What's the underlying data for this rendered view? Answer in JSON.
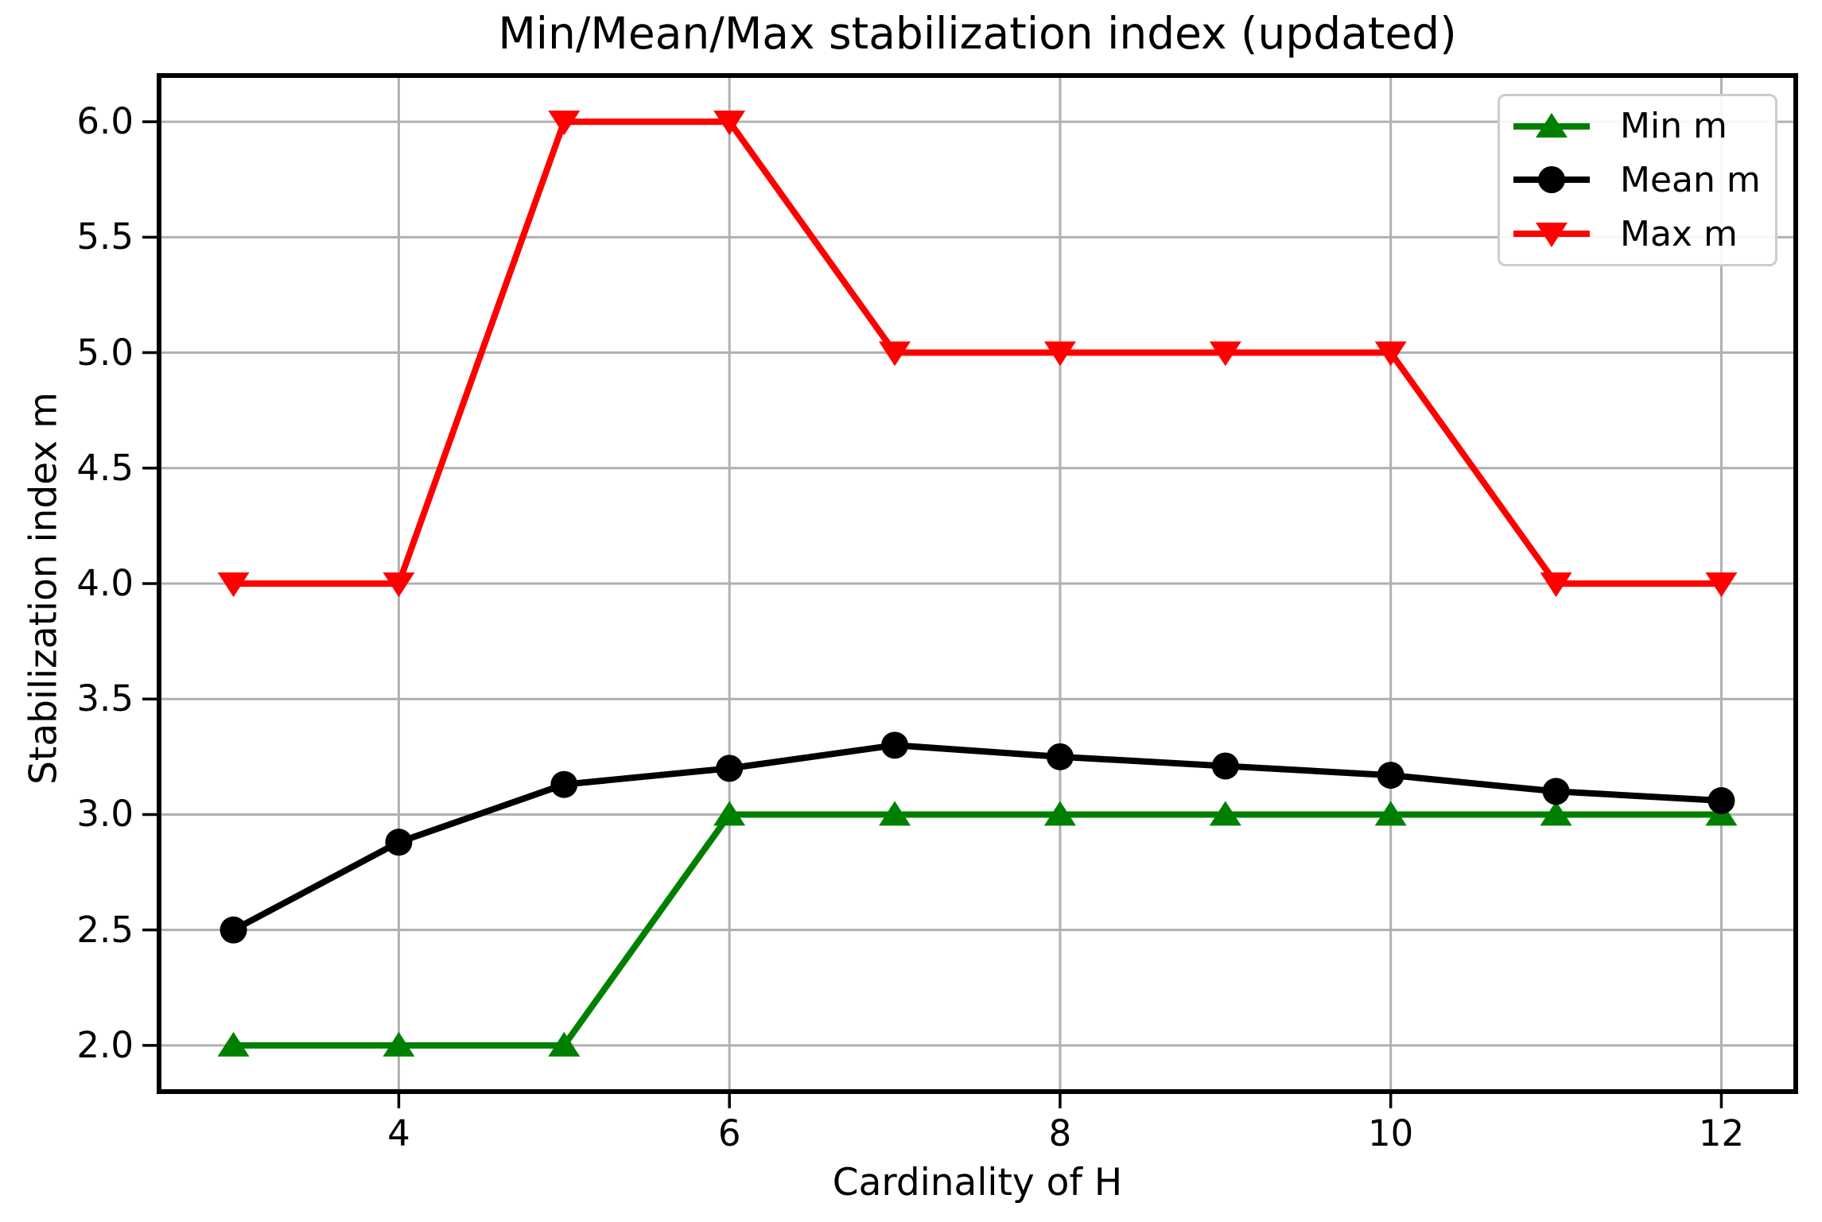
{
  "title": "Min/Mean/Max stabilization index (updated)",
  "chart_data": {
    "type": "line",
    "title": "Min/Mean/Max stabilization index (updated)",
    "xlabel": "Cardinality of H",
    "ylabel": "Stabilization index m",
    "x": [
      3,
      4,
      5,
      6,
      7,
      8,
      9,
      10,
      11,
      12
    ],
    "series": [
      {
        "name": "Min m",
        "color": "#008000",
        "marker": "triangle-up",
        "values": [
          2,
          2,
          2,
          3,
          3,
          3,
          3,
          3,
          3,
          3
        ]
      },
      {
        "name": "Mean m",
        "color": "#000000",
        "marker": "circle",
        "values": [
          2.5,
          2.88,
          3.13,
          3.2,
          3.3,
          3.25,
          3.21,
          3.17,
          3.1,
          3.06
        ]
      },
      {
        "name": "Max m",
        "color": "#ff0000",
        "marker": "triangle-down",
        "values": [
          4,
          4,
          6,
          6,
          5,
          5,
          5,
          5,
          4,
          4
        ]
      }
    ],
    "xticks": [
      4,
      6,
      8,
      10,
      12
    ],
    "yticks": [
      2.0,
      2.5,
      3.0,
      3.5,
      4.0,
      4.5,
      5.0,
      5.5,
      6.0
    ],
    "xlim": [
      2.55,
      12.45
    ],
    "ylim": [
      1.8,
      6.2
    ],
    "grid": true,
    "grid_color": "#b0b0b0",
    "legend_position": "upper right",
    "background": "#ffffff"
  },
  "legend": {
    "items": [
      {
        "label": "Min m"
      },
      {
        "label": "Mean m"
      },
      {
        "label": "Max m"
      }
    ]
  }
}
